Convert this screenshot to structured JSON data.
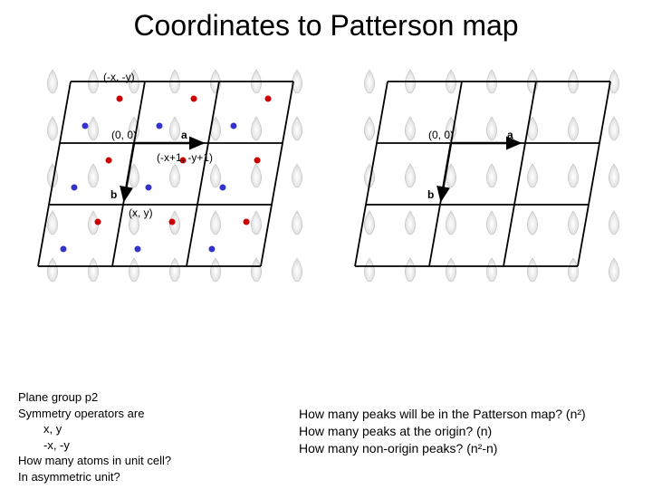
{
  "title": "Coordinates to Patterson map",
  "leftBlock": {
    "line1": "Plane group p2",
    "line2": "Symmetry operators are",
    "line3": "x, y",
    "line4": "-x, -y",
    "line5": "How many atoms in unit cell?",
    "line6": "In asymmetric unit?"
  },
  "rightBlock": {
    "line1": "How many peaks will be in the Patterson map? (n²)",
    "line2": "How many peaks at the origin? (n)",
    "line3": "How many non-origin peaks? (n²-n)"
  },
  "labels": {
    "minusXY": "(-x, -y)",
    "origin1": "(0, 0)",
    "a1": "a",
    "shifted": "(-x+1, -y+1)",
    "b1": "b",
    "xy": "(x, y)",
    "origin2": "(0, 0)",
    "a2": "a",
    "b2": "b"
  },
  "grid": {
    "stroke": "#000000",
    "lineWidth": 1.8,
    "arrowLineWidth": 2.5,
    "red": "#cc0000",
    "blue": "#3333cc",
    "flameInner": "#ffffff",
    "flameOuter": "#d5d5d5",
    "dotRadius": 3.5,
    "skew": 12
  }
}
